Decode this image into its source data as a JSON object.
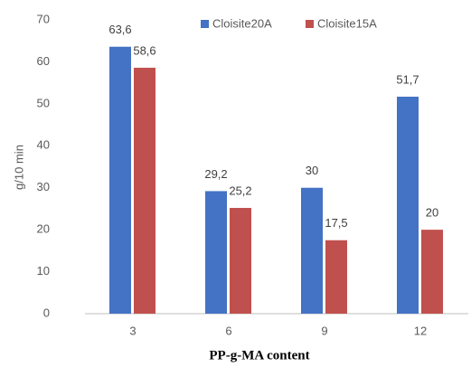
{
  "chart_data": {
    "type": "bar",
    "categories": [
      "3",
      "6",
      "9",
      "12"
    ],
    "series": [
      {
        "name": "Cloisite20A",
        "color": "#4472c4",
        "values": [
          63.6,
          29.2,
          30,
          51.7
        ],
        "value_labels": [
          "63,6",
          "29,2",
          "30",
          "51,7"
        ]
      },
      {
        "name": "Cloisite15A",
        "color": "#c0504d",
        "values": [
          58.6,
          25.2,
          17.5,
          20
        ],
        "value_labels": [
          "58,6",
          "25,2",
          "17,5",
          "20"
        ]
      }
    ],
    "ylabel": "g/10 min",
    "xlabel": "PP-g-MA content",
    "ylim": [
      0,
      70
    ],
    "yticks": [
      0,
      10,
      20,
      30,
      40,
      50,
      60,
      70
    ],
    "grid": false,
    "legend": "top"
  }
}
